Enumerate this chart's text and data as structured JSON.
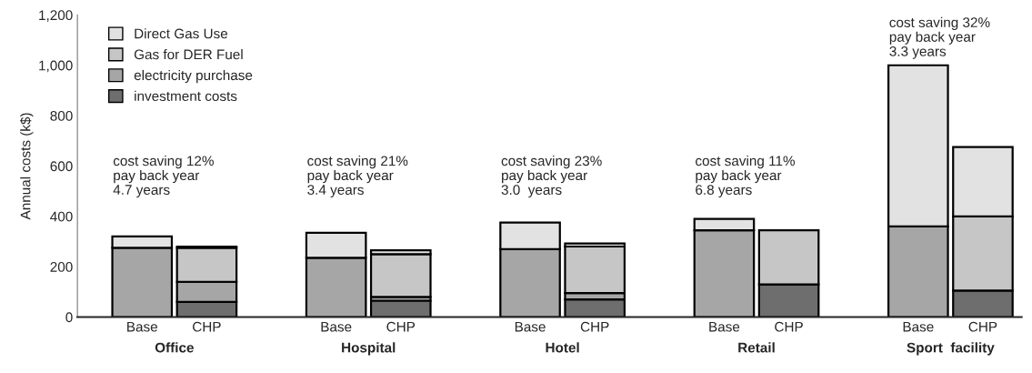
{
  "chart_data": {
    "type": "bar",
    "stacked": true,
    "ylabel": "Annual costs (k$)",
    "categories": [
      "Base",
      "CHP",
      "Base",
      "CHP",
      "Base",
      "CHP",
      "Base",
      "CHP",
      "Base",
      "CHP"
    ],
    "series": [
      {
        "name": "investment costs",
        "color": "#6e6e6e",
        "values": [
          0,
          60,
          0,
          65,
          0,
          70,
          0,
          130,
          0,
          105
        ]
      },
      {
        "name": "electricity purchase",
        "color": "#a6a6a6",
        "values": [
          275,
          80,
          235,
          15,
          270,
          25,
          345,
          0,
          360,
          0
        ]
      },
      {
        "name": "Gas for DER Fuel",
        "color": "#c6c6c6",
        "values": [
          0,
          135,
          0,
          170,
          0,
          185,
          0,
          215,
          0,
          295
        ]
      },
      {
        "name": "Direct Gas Use",
        "color": "#e2e2e2",
        "values": [
          45,
          5,
          100,
          15,
          105,
          12,
          45,
          0,
          640,
          275
        ]
      }
    ],
    "ylim": [
      0,
      1200
    ],
    "yticks": [
      0,
      200,
      400,
      600,
      800,
      {
        "value": 1000,
        "label": "1,000"
      },
      {
        "value": 1200,
        "label": "1,200"
      }
    ],
    "grid": false,
    "legend": "top left",
    "annotations": [
      "cost saving 12%\npay back year\n4.7 years",
      "Office",
      "cost saving 21%\npay back year\n3.4 years",
      "Hospital",
      "cost saving 23%\npay back year\n3.0  years",
      "Hotel",
      "cost saving 11%\npay back year\n6.8 years",
      "Retail",
      "cost saving 32%\npay back year\n3.3 years",
      "Sport  facility"
    ]
  }
}
